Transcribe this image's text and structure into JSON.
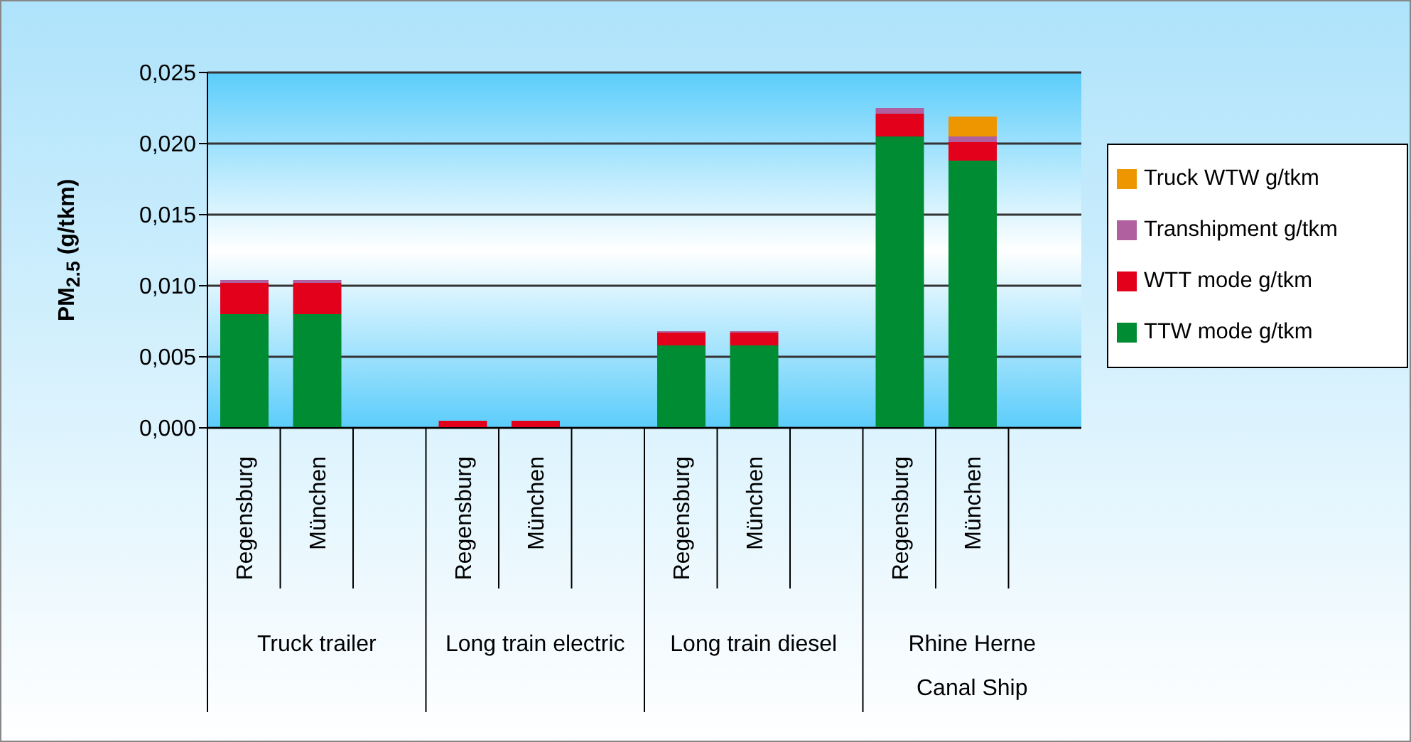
{
  "chart_data": {
    "type": "bar",
    "stacked": true,
    "ylabel": "PM$_{2.5}$ (g/tkm)",
    "categories": [
      "Regensburg",
      "München",
      null,
      "Regensburg",
      "München",
      null,
      "Regensburg",
      "München",
      null,
      "Regensburg",
      "München",
      null
    ],
    "annotations": [
      "Truck trailer",
      "Long train electric",
      "Long train diesel",
      "Rhine Herne Canal Ship"
    ],
    "series": [
      {
        "name": "TTW mode g/tkm",
        "color": "#008c33",
        "values": [
          0.008,
          0.008,
          null,
          0,
          0,
          null,
          0.0058,
          0.0058,
          null,
          0.0205,
          0.0188,
          null
        ]
      },
      {
        "name": "WTT mode g/tkm",
        "color": "#e2001a",
        "values": [
          0.0022,
          0.0022,
          null,
          0.0005,
          0.0005,
          null,
          0.0009,
          0.0009,
          null,
          0.0016,
          0.0013,
          null
        ]
      },
      {
        "name": "Transhipment g/tkm",
        "color": "#b0609e",
        "values": [
          0.0002,
          0.0002,
          null,
          0,
          0,
          null,
          0.0001,
          0.0001,
          null,
          0.0004,
          0.0004,
          null
        ]
      },
      {
        "name": "Truck WTW g/tkm",
        "color": "#ee9600",
        "values": [
          0,
          0,
          null,
          0,
          0,
          null,
          0,
          0,
          null,
          0,
          0.0014,
          null
        ]
      }
    ],
    "ylim": [
      0,
      0.025
    ],
    "yticks": [
      {
        "value": 0,
        "label": "0,000"
      },
      {
        "value": 0.005,
        "label": "0,005"
      },
      {
        "value": 0.01,
        "label": "0,010"
      },
      {
        "value": 0.015,
        "label": "0,015"
      },
      {
        "value": 0.02,
        "label": "0,020"
      },
      {
        "value": 0.025,
        "label": "0,025"
      }
    ],
    "grid": "y",
    "legend": "right"
  }
}
